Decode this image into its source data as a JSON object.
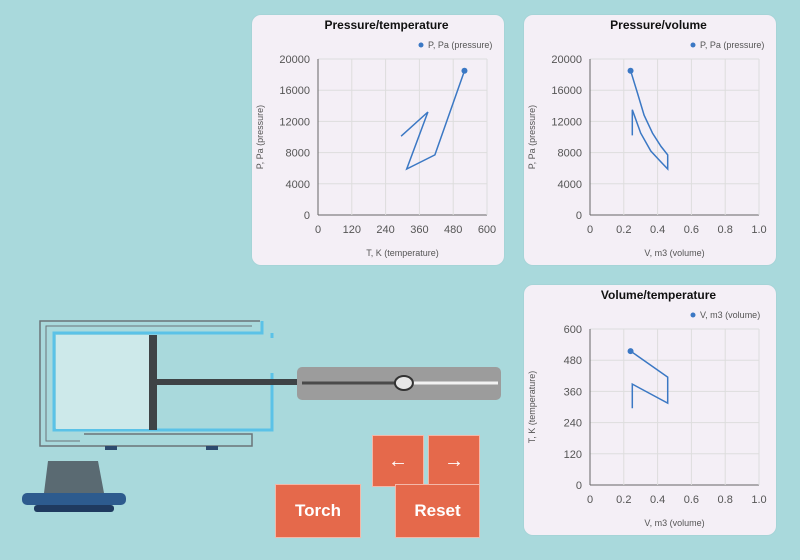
{
  "buttons": {
    "torch_label": "Torch",
    "reset_label": "Reset",
    "left_arrow": "←",
    "right_arrow": "→"
  },
  "colors": {
    "background": "#a9d9dc",
    "panel": "#f4eff6",
    "series": "#3b78c4",
    "button": "#e5694b",
    "container_outline": "#5bc2e7",
    "gas_fill": "#cde9ea"
  },
  "chart_data": [
    {
      "type": "line",
      "title": "Pressure/temperature",
      "xlabel": "T, K (temperature)",
      "ylabel": "P, Pa (pressure)",
      "xlim": [
        0,
        600
      ],
      "ylim": [
        0,
        20000
      ],
      "xticks": [
        "0",
        "120",
        "240",
        "360",
        "480",
        "600"
      ],
      "yticks": [
        "0",
        "4000",
        "8000",
        "12000",
        "16000",
        "20000"
      ],
      "legend": "top-right",
      "grid": true,
      "series": [
        {
          "name": "P, Pa (pressure)",
          "points": [
            [
              295,
              10100
            ],
            [
              390,
              13200
            ],
            [
              315,
              5900
            ],
            [
              415,
              7700
            ],
            [
              520,
              18500
            ]
          ],
          "marker_last": true
        }
      ]
    },
    {
      "type": "line",
      "title": "Pressure/volume",
      "xlabel": "V, m3 (volume)",
      "ylabel": "P, Pa (pressure)",
      "xlim": [
        0,
        1.0
      ],
      "ylim": [
        0,
        20000
      ],
      "xticks": [
        "0",
        "0.2",
        "0.4",
        "0.6",
        "0.8",
        "1.0"
      ],
      "yticks": [
        "0",
        "4000",
        "8000",
        "12000",
        "16000",
        "20000"
      ],
      "legend": "top-right",
      "grid": true,
      "series": [
        {
          "name": "P, Pa (pressure)",
          "points": [
            [
              0.25,
              10200
            ],
            [
              0.25,
              13500
            ],
            [
              0.3,
              10500
            ],
            [
              0.36,
              8200
            ],
            [
              0.42,
              6800
            ],
            [
              0.46,
              5900
            ],
            [
              0.46,
              7700
            ],
            [
              0.42,
              8800
            ],
            [
              0.37,
              10500
            ],
            [
              0.32,
              12800
            ],
            [
              0.28,
              15700
            ],
            [
              0.24,
              18500
            ]
          ],
          "marker_last": true
        }
      ]
    },
    {
      "type": "line",
      "title": "Volume/temperature",
      "xlabel": "V, m3 (volume)",
      "ylabel": "T, K (temperature)",
      "xlim": [
        0,
        1.0
      ],
      "ylim": [
        0,
        600
      ],
      "xticks": [
        "0",
        "0.2",
        "0.4",
        "0.6",
        "0.8",
        "1.0"
      ],
      "yticks": [
        "0",
        "120",
        "240",
        "360",
        "480",
        "600"
      ],
      "legend": "top-right",
      "grid": true,
      "series": [
        {
          "name": "V, m3 (volume)",
          "points": [
            [
              0.25,
              295
            ],
            [
              0.25,
              388
            ],
            [
              0.46,
              315
            ],
            [
              0.46,
              415
            ],
            [
              0.24,
              515
            ]
          ],
          "marker_last": true
        }
      ]
    }
  ],
  "slider": {
    "value": 0.52
  }
}
